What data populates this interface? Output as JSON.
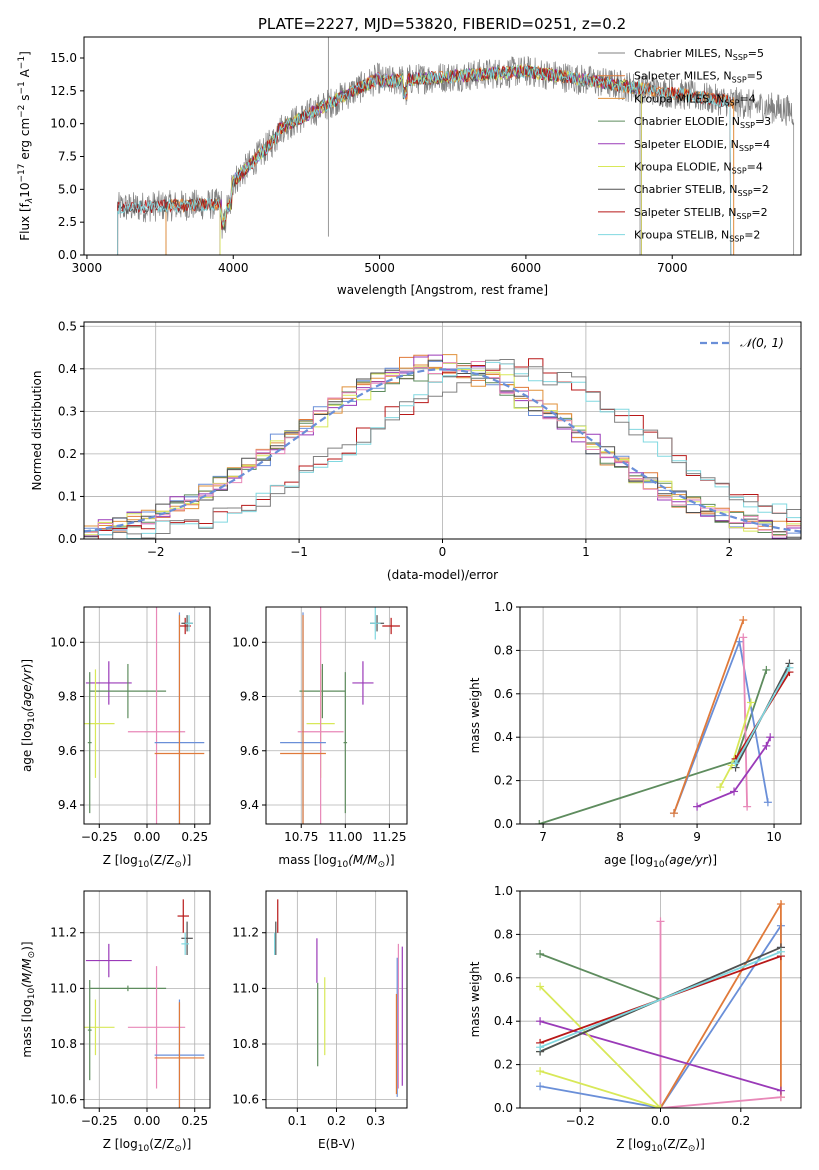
{
  "figure": {
    "title": "PLATE=2227, MJD=53820, FIBERID=0251, z=0.2",
    "colors": {
      "chabrier_miles": "#6a8fd8",
      "salpeter_miles": "#e07a3a",
      "kroupa_miles": "#e0903a",
      "chabrier_elodie": "#5e8c5e",
      "salpeter_elodie": "#9a3ab8",
      "kroupa_elodie": "#d8e858",
      "chabrier_stelib": "#505050",
      "salpeter_stelib": "#b81818",
      "kroupa_stelib": "#80d8e0",
      "pink": "#e888b8",
      "normal": "#6a8fd8"
    }
  },
  "chart_data": [
    {
      "id": "spectrum",
      "type": "line",
      "xlabel": "wavelength [Angstrom, rest frame]",
      "ylabel_parts": [
        "Flux [f",
        "λ",
        "10",
        "−17",
        " erg cm",
        "−2",
        " s",
        "−1",
        " A",
        "−1",
        "]"
      ],
      "xlim": [
        2980,
        7880
      ],
      "ylim": [
        0,
        16.6
      ],
      "xticks": [
        3000,
        4000,
        5000,
        6000,
        7000
      ],
      "yticks": [
        0.0,
        2.5,
        5.0,
        7.5,
        10.0,
        12.5,
        15.0
      ],
      "xticklabels": [
        "3000",
        "4000",
        "5000",
        "6000",
        "7000"
      ],
      "yticklabels": [
        "0.0",
        "2.5",
        "5.0",
        "7.5",
        "10.0",
        "12.5",
        "15.0"
      ],
      "grid": false,
      "legend_position": "right",
      "series": [
        {
          "name": "Chabrier MILES, N",
          "sub": "SSP",
          "suffix": "=5",
          "color": "#808080",
          "start": 3540,
          "end": 6780
        },
        {
          "name": "Salpeter MILES, N",
          "sub": "SSP",
          "suffix": "=5",
          "color": "#e07a3a",
          "start": 3540,
          "end": 7420
        },
        {
          "name": "Kroupa MILES, N",
          "sub": "SSP",
          "suffix": "=4",
          "color": "#e0903a",
          "start": 3540,
          "end": 7420
        },
        {
          "name": "Chabrier ELODIE, N",
          "sub": "SSP",
          "suffix": "=3",
          "color": "#5e8c5e",
          "start": 3910,
          "end": 6790
        },
        {
          "name": "Salpeter ELODIE, N",
          "sub": "SSP",
          "suffix": "=4",
          "color": "#9a3ab8",
          "start": 3910,
          "end": 6790
        },
        {
          "name": "Kroupa ELODIE, N",
          "sub": "SSP",
          "suffix": "=4",
          "color": "#d8e858",
          "start": 3910,
          "end": 6790
        },
        {
          "name": "Chabrier STELIB, N",
          "sub": "SSP",
          "suffix": "=2",
          "color": "#505050",
          "start": 3210,
          "end": 7400
        },
        {
          "name": "Salpeter STELIB, N",
          "sub": "SSP",
          "suffix": "=2",
          "color": "#b81818",
          "start": 3210,
          "end": 7400
        },
        {
          "name": "Kroupa STELIB, N",
          "sub": "SSP",
          "suffix": "=2",
          "color": "#80d8e0",
          "start": 3210,
          "end": 7400
        }
      ],
      "data_trace": {
        "color": "#808080",
        "start": 3210,
        "end": 7830,
        "spike_at": 4650,
        "spike_low": 1.4,
        "spike_high": 16.6
      }
    },
    {
      "id": "residuals",
      "type": "histogram",
      "xlabel": "(data-model)/error",
      "ylabel": "Normed distribution",
      "xlim": [
        -2.5,
        2.5
      ],
      "ylim": [
        0,
        0.51
      ],
      "xticks": [
        -2,
        -1,
        0,
        1,
        2
      ],
      "xticklabels": [
        "−2",
        "−1",
        "0",
        "1",
        "2"
      ],
      "yticks": [
        0.0,
        0.1,
        0.2,
        0.3,
        0.4,
        0.5
      ],
      "yticklabels": [
        "0.0",
        "0.1",
        "0.2",
        "0.3",
        "0.4",
        "0.5"
      ],
      "grid": true,
      "legend": {
        "label": "𝒩(0, 1)",
        "position": "top-right"
      },
      "normal_curve": {
        "mean": 0,
        "std": 1,
        "style": "dashed"
      },
      "groups": [
        {
          "colors": [
            "#6a8fd8",
            "#e07a3a",
            "#e0903a",
            "#5e8c5e",
            "#9a3ab8",
            "#d8e858",
            "#505050",
            "#e888b8"
          ],
          "shift": -0.05
        },
        {
          "colors": [
            "#b81818",
            "#80d8e0",
            "#808080"
          ],
          "shift": 0.45
        }
      ]
    },
    {
      "id": "age_vs_Z",
      "type": "errorbar",
      "xlabel": "Z [log",
      "xlabel_sub": "10",
      "xlabel_rest": "(Z/Z",
      "ylabel": "age  [log",
      "xlim": [
        -0.33,
        0.33
      ],
      "ylim": [
        9.33,
        10.13
      ],
      "xticks": [
        -0.25,
        0.0,
        0.25
      ],
      "xticklabels": [
        "−0.25",
        "0.00",
        "0.25"
      ],
      "yticks": [
        9.4,
        9.6,
        9.8,
        10.0
      ],
      "yticklabels": [
        "9.4",
        "9.6",
        "9.8",
        "10.0"
      ],
      "grid": true,
      "points": [
        {
          "x": 0.2,
          "y": 10.06,
          "xerr": 0.03,
          "yerr": 0.03,
          "color": "#b81818"
        },
        {
          "x": 0.21,
          "y": 10.07,
          "xerr": 0.03,
          "yerr": 0.03,
          "color": "#505050"
        },
        {
          "x": 0.22,
          "y": 10.07,
          "xerr": 0.02,
          "yerr": 0.03,
          "color": "#80d8e0"
        },
        {
          "x": -0.2,
          "y": 9.85,
          "xerr": 0.12,
          "yerr": 0.08,
          "color": "#9a3ab8"
        },
        {
          "x": -0.1,
          "y": 9.82,
          "xerr": 0.2,
          "yerr": 0.1,
          "color": "#5e8c5e"
        },
        {
          "x": -0.27,
          "y": 9.7,
          "xerr": 0.1,
          "yerr": 0.2,
          "color": "#d8e858"
        },
        {
          "x": -0.3,
          "y": 9.63,
          "xerr": 0.01,
          "yerr": 0.26,
          "color": "#5e8c5e"
        },
        {
          "x": 0.05,
          "y": 9.67,
          "xerr": 0.15,
          "yerr": 0.5,
          "color": "#e888b8"
        },
        {
          "x": 0.17,
          "y": 9.63,
          "xerr": 0.13,
          "yerr": 0.48,
          "color": "#6a8fd8"
        },
        {
          "x": 0.17,
          "y": 9.59,
          "xerr": 0.13,
          "yerr": 0.51,
          "color": "#e07a3a"
        }
      ]
    },
    {
      "id": "age_vs_mass",
      "type": "errorbar",
      "xlabel": "mass [log",
      "xlim": [
        10.55,
        11.35
      ],
      "ylim": [
        9.33,
        10.13
      ],
      "xticks": [
        10.75,
        11.0,
        11.25
      ],
      "xticklabels": [
        "10.75",
        "11.00",
        "11.25"
      ],
      "yticks": [
        9.4,
        9.6,
        9.8,
        10.0
      ],
      "yticklabels": [
        "9.4",
        "9.6",
        "9.8",
        "10.0"
      ],
      "grid": true,
      "points": [
        {
          "x": 11.26,
          "y": 10.06,
          "xerr": 0.05,
          "yerr": 0.03,
          "color": "#b81818"
        },
        {
          "x": 11.18,
          "y": 10.07,
          "xerr": 0.04,
          "yerr": 0.03,
          "color": "#505050"
        },
        {
          "x": 11.17,
          "y": 10.07,
          "xerr": 0.03,
          "yerr": 0.06,
          "color": "#80d8e0"
        },
        {
          "x": 11.1,
          "y": 9.85,
          "xerr": 0.06,
          "yerr": 0.08,
          "color": "#9a3ab8"
        },
        {
          "x": 10.87,
          "y": 9.82,
          "xerr": 0.13,
          "yerr": 0.1,
          "color": "#5e8c5e"
        },
        {
          "x": 10.86,
          "y": 9.7,
          "xerr": 0.08,
          "yerr": 0.2,
          "color": "#d8e858"
        },
        {
          "x": 11.0,
          "y": 9.63,
          "xerr": 0.01,
          "yerr": 0.26,
          "color": "#5e8c5e"
        },
        {
          "x": 10.86,
          "y": 9.67,
          "xerr": 0.13,
          "yerr": 0.5,
          "color": "#e888b8"
        },
        {
          "x": 10.76,
          "y": 9.63,
          "xerr": 0.13,
          "yerr": 0.48,
          "color": "#6a8fd8"
        },
        {
          "x": 10.76,
          "y": 9.59,
          "xerr": 0.13,
          "yerr": 0.51,
          "color": "#e07a3a"
        }
      ]
    },
    {
      "id": "weight_vs_age",
      "type": "line",
      "xlabel": "age  [log",
      "ylabel": "mass weight",
      "xlim": [
        6.7,
        10.35
      ],
      "ylim": [
        0,
        1.0
      ],
      "xticks": [
        7,
        8,
        9,
        10
      ],
      "xticklabels": [
        "7",
        "8",
        "9",
        "10"
      ],
      "yticks": [
        0.0,
        0.2,
        0.4,
        0.6,
        0.8,
        1.0
      ],
      "yticklabels": [
        "0.0",
        "0.2",
        "0.4",
        "0.6",
        "0.8",
        "1.0"
      ],
      "grid": true,
      "series": [
        {
          "color": "#5e8c5e",
          "x": [
            6.95,
            9.5,
            9.9
          ],
          "y": [
            0.0,
            0.29,
            0.71
          ]
        },
        {
          "color": "#6a8fd8",
          "x": [
            8.7,
            9.55,
            9.92
          ],
          "y": [
            0.05,
            0.84,
            0.1
          ]
        },
        {
          "color": "#e07a3a",
          "x": [
            8.7,
            9.6
          ],
          "y": [
            0.05,
            0.94
          ]
        },
        {
          "color": "#e888b8",
          "x": [
            9.65,
            9.6
          ],
          "y": [
            0.08,
            0.86
          ]
        },
        {
          "color": "#9a3ab8",
          "x": [
            9.0,
            9.48,
            9.9,
            9.95
          ],
          "y": [
            0.08,
            0.15,
            0.36,
            0.4
          ]
        },
        {
          "color": "#d8e858",
          "x": [
            9.3,
            9.45,
            9.7
          ],
          "y": [
            0.17,
            0.27,
            0.56
          ]
        },
        {
          "color": "#505050",
          "x": [
            9.5,
            10.2
          ],
          "y": [
            0.26,
            0.74
          ]
        },
        {
          "color": "#b81818",
          "x": [
            9.5,
            10.2
          ],
          "y": [
            0.3,
            0.7
          ]
        },
        {
          "color": "#80d8e0",
          "x": [
            9.5,
            10.2
          ],
          "y": [
            0.28,
            0.72
          ]
        }
      ]
    },
    {
      "id": "mass_vs_Z",
      "type": "errorbar",
      "xlabel": "Z [log",
      "ylabel": "mass [log",
      "xlim": [
        -0.33,
        0.33
      ],
      "ylim": [
        10.57,
        11.35
      ],
      "xticks": [
        -0.25,
        0.0,
        0.25
      ],
      "xticklabels": [
        "−0.25",
        "0.00",
        "0.25"
      ],
      "yticks": [
        10.6,
        10.8,
        11.0,
        11.2
      ],
      "yticklabels": [
        "10.6",
        "10.8",
        "11.0",
        "11.2"
      ],
      "grid": true,
      "points": [
        {
          "x": 0.19,
          "y": 11.26,
          "xerr": 0.03,
          "yerr": 0.06,
          "color": "#b81818"
        },
        {
          "x": 0.21,
          "y": 11.18,
          "xerr": 0.03,
          "yerr": 0.06,
          "color": "#505050"
        },
        {
          "x": 0.2,
          "y": 11.16,
          "xerr": 0.02,
          "yerr": 0.04,
          "color": "#80d8e0"
        },
        {
          "x": -0.2,
          "y": 11.1,
          "xerr": 0.12,
          "yerr": 0.06,
          "color": "#9a3ab8"
        },
        {
          "x": -0.1,
          "y": 11.0,
          "xerr": 0.2,
          "yerr": 0.01,
          "color": "#5e8c5e"
        },
        {
          "x": -0.27,
          "y": 10.86,
          "xerr": 0.1,
          "yerr": 0.1,
          "color": "#d8e858"
        },
        {
          "x": -0.3,
          "y": 10.85,
          "xerr": 0.01,
          "yerr": 0.18,
          "color": "#5e8c5e"
        },
        {
          "x": 0.05,
          "y": 10.86,
          "xerr": 0.15,
          "yerr": 0.22,
          "color": "#e888b8"
        },
        {
          "x": 0.17,
          "y": 10.76,
          "xerr": 0.13,
          "yerr": 0.2,
          "color": "#6a8fd8"
        },
        {
          "x": 0.17,
          "y": 10.75,
          "xerr": 0.13,
          "yerr": 0.2,
          "color": "#e07a3a"
        }
      ]
    },
    {
      "id": "mass_vs_ebv",
      "type": "errorbar",
      "xlabel": "E(B-V)",
      "xlim": [
        0.02,
        0.38
      ],
      "ylim": [
        10.57,
        11.35
      ],
      "xticks": [
        0.1,
        0.2,
        0.3
      ],
      "xticklabels": [
        "0.1",
        "0.2",
        "0.3"
      ],
      "yticks": [
        10.6,
        10.8,
        11.0,
        11.2
      ],
      "yticklabels": [
        "10.6",
        "10.8",
        "11.0",
        "11.2"
      ],
      "grid": true,
      "points": [
        {
          "x": 0.05,
          "y": 11.26,
          "xerr": 0.0,
          "yerr": 0.06,
          "color": "#b81818"
        },
        {
          "x": 0.045,
          "y": 11.18,
          "xerr": 0.0,
          "yerr": 0.06,
          "color": "#505050"
        },
        {
          "x": 0.042,
          "y": 11.16,
          "xerr": 0.0,
          "yerr": 0.04,
          "color": "#80d8e0"
        },
        {
          "x": 0.15,
          "y": 11.1,
          "xerr": 0.0,
          "yerr": 0.08,
          "color": "#9a3ab8"
        },
        {
          "x": 0.152,
          "y": 10.87,
          "xerr": 0.0,
          "yerr": 0.15,
          "color": "#5e8c5e"
        },
        {
          "x": 0.17,
          "y": 10.9,
          "xerr": 0.0,
          "yerr": 0.14,
          "color": "#d8e858"
        },
        {
          "x": 0.358,
          "y": 10.9,
          "xerr": 0.0,
          "yerr": 0.26,
          "color": "#e888b8"
        },
        {
          "x": 0.368,
          "y": 10.9,
          "xerr": 0.0,
          "yerr": 0.25,
          "color": "#9a3ab8"
        },
        {
          "x": 0.355,
          "y": 10.86,
          "xerr": 0.0,
          "yerr": 0.25,
          "color": "#6a8fd8"
        },
        {
          "x": 0.353,
          "y": 10.8,
          "xerr": 0.0,
          "yerr": 0.18,
          "color": "#e07a3a"
        }
      ]
    },
    {
      "id": "weight_vs_Z",
      "type": "line",
      "xlabel": "Z [log",
      "ylabel": "mass weight",
      "xlim": [
        -0.35,
        0.35
      ],
      "ylim": [
        0,
        1.0
      ],
      "xticks": [
        -0.2,
        0.0,
        0.2
      ],
      "xticklabels": [
        "−0.2",
        "0.0",
        "0.2"
      ],
      "yticks": [
        0.0,
        0.2,
        0.4,
        0.6,
        0.8,
        1.0
      ],
      "yticklabels": [
        "0.0",
        "0.2",
        "0.4",
        "0.6",
        "0.8",
        "1.0"
      ],
      "grid": true,
      "series": [
        {
          "color": "#5e8c5e",
          "x": [
            -0.3,
            0.0,
            -0.3
          ],
          "y": [
            0.26,
            0.5,
            0.71
          ]
        },
        {
          "color": "#6a8fd8",
          "x": [
            -0.3,
            0.0,
            0.3,
            0.3
          ],
          "y": [
            0.1,
            0.0,
            0.84,
            0.74
          ]
        },
        {
          "color": "#e07a3a",
          "x": [
            0.0,
            0.3,
            0.3
          ],
          "y": [
            0.0,
            0.94,
            0.05
          ]
        },
        {
          "color": "#e888b8",
          "x": [
            0.0,
            0.0,
            0.3
          ],
          "y": [
            0.86,
            0.0,
            0.05
          ]
        },
        {
          "color": "#9a3ab8",
          "x": [
            -0.3,
            0.3
          ],
          "y": [
            0.4,
            0.08
          ]
        },
        {
          "color": "#d8e858",
          "x": [
            -0.3,
            0.0,
            -0.3
          ],
          "y": [
            0.56,
            0.0,
            0.17
          ]
        },
        {
          "color": "#505050",
          "x": [
            -0.3,
            0.3
          ],
          "y": [
            0.26,
            0.74
          ]
        },
        {
          "color": "#b81818",
          "x": [
            -0.3,
            0.3
          ],
          "y": [
            0.3,
            0.7
          ]
        },
        {
          "color": "#80d8e0",
          "x": [
            -0.3,
            0.3
          ],
          "y": [
            0.28,
            0.72
          ]
        }
      ]
    }
  ]
}
